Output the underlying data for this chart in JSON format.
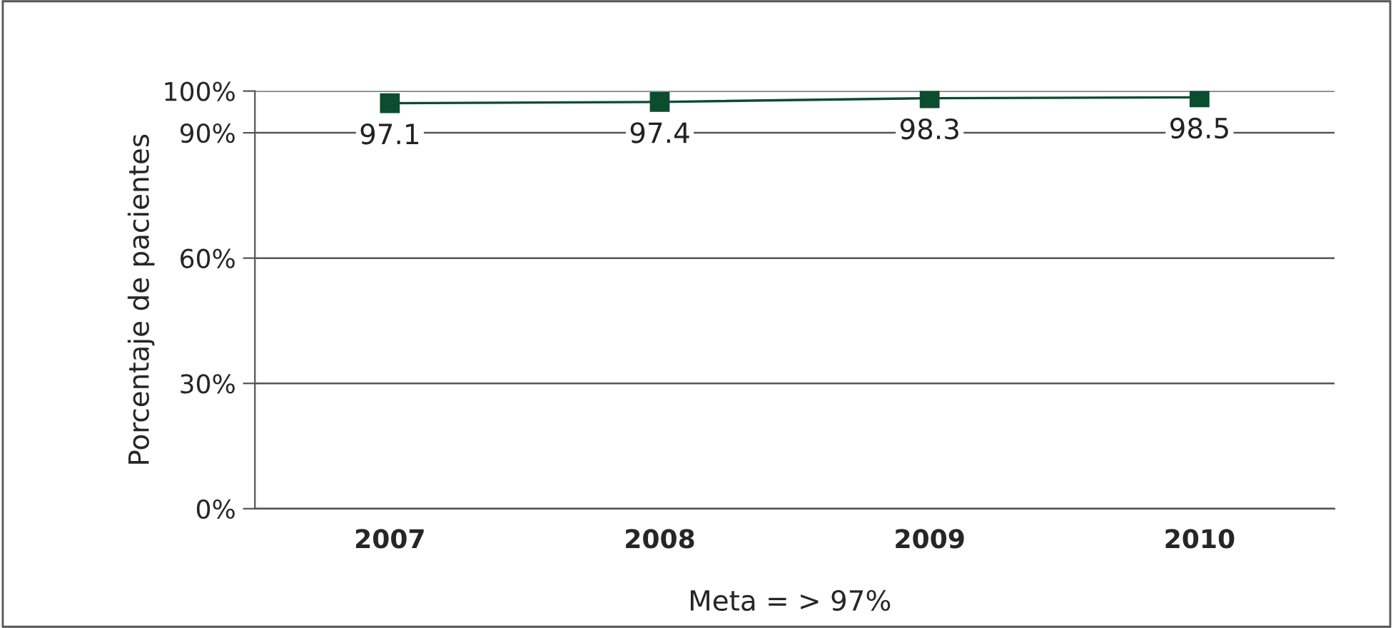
{
  "chart_data": {
    "type": "line",
    "ylabel": "Porcentaje de pacientes",
    "categories": [
      "2007",
      "2008",
      "2009",
      "2010"
    ],
    "series": [
      {
        "color": "#0b4d2e",
        "values": [
          97.1,
          97.4,
          98.3,
          98.5
        ]
      }
    ],
    "ylim": [
      0,
      100
    ],
    "yticks": [
      {
        "value": 0,
        "label": "0%"
      },
      {
        "value": 30,
        "label": "30%"
      },
      {
        "value": 60,
        "label": "60%"
      },
      {
        "value": 90,
        "label": "90%"
      },
      {
        "value": 100,
        "label": "100%"
      }
    ],
    "grid": "y",
    "marker": "square",
    "line_style": "solid",
    "data_labels": true,
    "legend": false,
    "annotations": [
      "Meta = > 97%"
    ]
  }
}
